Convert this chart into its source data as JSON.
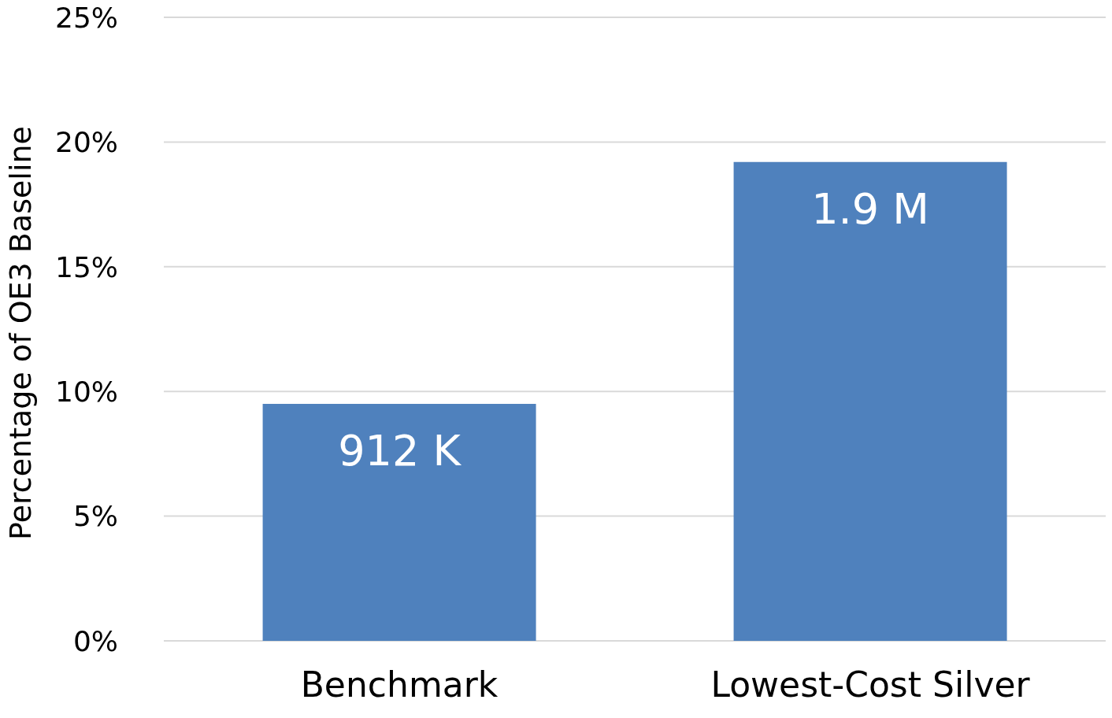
{
  "chart_data": {
    "type": "bar",
    "ylabel": "Percentage of OE3 Baseline",
    "categories": [
      "Benchmark",
      "Lowest-Cost Silver"
    ],
    "values": [
      9.5,
      19.2
    ],
    "color": "#4f81bd",
    "annotations": [
      {
        "text": "912 K",
        "x": "Benchmark",
        "y": 9.5
      },
      {
        "text": "1.9 M",
        "x": "Lowest-Cost Silver",
        "y": 19.2
      }
    ],
    "ylim": [
      0,
      25
    ],
    "yticks": [
      {
        "value": 0,
        "label": "0%"
      },
      {
        "value": 5,
        "label": "5%"
      },
      {
        "value": 10,
        "label": "10%"
      },
      {
        "value": 15,
        "label": "15%"
      },
      {
        "value": 20,
        "label": "20%"
      },
      {
        "value": 25,
        "label": "25%"
      }
    ],
    "grid": "y"
  }
}
